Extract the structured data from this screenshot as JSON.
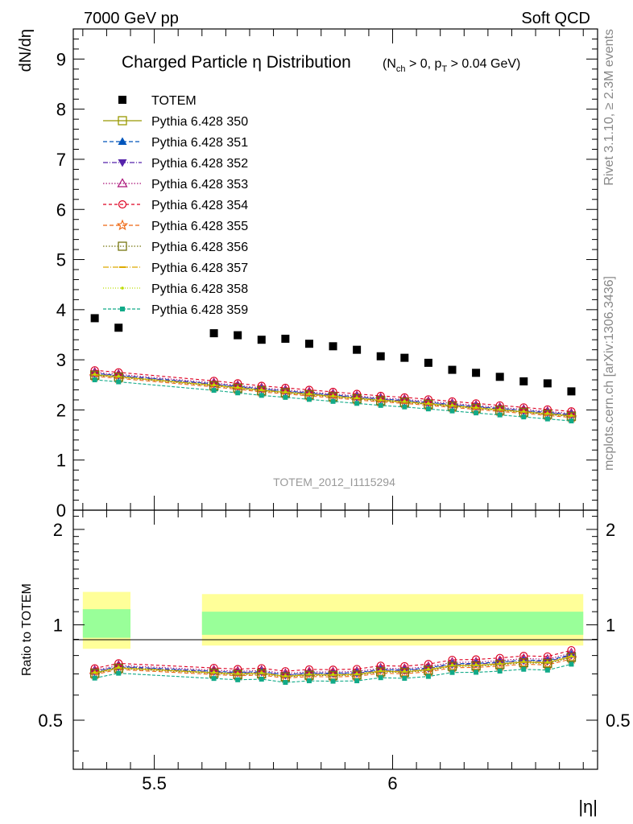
{
  "header": {
    "left": "7000 GeV pp",
    "right": "Soft QCD"
  },
  "side_labels": {
    "rivet": "Rivet 3.1.10, ≥ 2.3M events",
    "mcplots": "mcplots.cern.ch [arXiv:1306.3436]"
  },
  "chart_data": {
    "type": "scatter",
    "title": "Charged Particle η Distribution",
    "title_cuts": {
      "open": "(N",
      "sub1": "ch",
      "mid": " > 0, p",
      "sub2": "T",
      "close": " > 0.04 GeV)"
    },
    "watermark": "TOTEM_2012_I1115294",
    "xlabel": "|η|",
    "ylabel": "dN/dη",
    "ratio_ylabel": "Ratio to TOTEM",
    "xlim": [
      5.33,
      6.43
    ],
    "ylim": [
      0,
      9.6
    ],
    "ratio_ylim": [
      0.35,
      2.3
    ],
    "x_ticks": [
      5.5,
      6
    ],
    "x_tick_labels": [
      "5.5",
      "6"
    ],
    "y_ticks": [
      0,
      1,
      2,
      3,
      4,
      5,
      6,
      7,
      8,
      9
    ],
    "y_tick_labels": [
      "0",
      "1",
      "2",
      "3",
      "4",
      "5",
      "6",
      "7",
      "8",
      "9"
    ],
    "ratio_ticks": [
      0.5,
      1,
      2
    ],
    "ratio_tick_labels": [
      "0.5",
      "1",
      "2"
    ],
    "data": {
      "name": "TOTEM",
      "color": "#000000",
      "x": [
        5.375,
        5.425,
        5.625,
        5.675,
        5.725,
        5.775,
        5.825,
        5.875,
        5.925,
        5.975,
        6.025,
        6.075,
        6.125,
        6.175,
        6.225,
        6.275,
        6.325,
        6.375
      ],
      "y": [
        3.83,
        3.64,
        3.53,
        3.49,
        3.4,
        3.42,
        3.32,
        3.27,
        3.2,
        3.07,
        3.04,
        2.94,
        2.8,
        2.74,
        2.66,
        2.57,
        2.53,
        2.37
      ],
      "band_inner": [
        {
          "x0": 5.35,
          "x1": 5.45,
          "lo": 0.91,
          "hi": 1.12
        },
        {
          "x0": 5.6,
          "x1": 6.4,
          "lo": 0.93,
          "hi": 1.1
        }
      ],
      "band_outer": [
        {
          "x0": 5.35,
          "x1": 5.45,
          "lo": 0.84,
          "hi": 1.27
        },
        {
          "x0": 5.6,
          "x1": 6.4,
          "lo": 0.86,
          "hi": 1.25
        }
      ]
    },
    "series": [
      {
        "name": "Pythia 6.428 350",
        "color": "#999900",
        "dash": "",
        "marker": "square-open",
        "offset": 0.0
      },
      {
        "name": "Pythia 6.428 351",
        "color": "#0055bb",
        "dash": "5,3",
        "marker": "triangle-up",
        "offset": 0.03
      },
      {
        "name": "Pythia 6.428 352",
        "color": "#5522aa",
        "dash": "6,2,1,2",
        "marker": "triangle-down",
        "offset": 0.02
      },
      {
        "name": "Pythia 6.428 353",
        "color": "#aa1177",
        "dash": "1.5,2",
        "marker": "triangle-open",
        "offset": 0.05
      },
      {
        "name": "Pythia 6.428 354",
        "color": "#dd0022",
        "dash": "4,3",
        "marker": "circle-open",
        "offset": 0.09
      },
      {
        "name": "Pythia 6.428 355",
        "color": "#ee6611",
        "dash": "5,3",
        "marker": "star-open",
        "offset": -0.03
      },
      {
        "name": "Pythia 6.428 356",
        "color": "#777711",
        "dash": "1.5,2",
        "marker": "square-open",
        "offset": -0.01
      },
      {
        "name": "Pythia 6.428 357",
        "color": "#ddaa00",
        "dash": "7,2,1,2",
        "marker": "dash",
        "offset": 0.0
      },
      {
        "name": "Pythia 6.428 358",
        "color": "#bbdd00",
        "dash": "1,2",
        "marker": "dot",
        "offset": 0.01
      },
      {
        "name": "Pythia 6.428 359",
        "color": "#11aa88",
        "dash": "4,2",
        "marker": "square-small",
        "offset": -0.1
      }
    ],
    "base_model_y": [
      2.7,
      2.66,
      2.49,
      2.44,
      2.39,
      2.35,
      2.31,
      2.27,
      2.23,
      2.19,
      2.16,
      2.12,
      2.08,
      2.04,
      2.0,
      1.96,
      1.92,
      1.88
    ]
  }
}
